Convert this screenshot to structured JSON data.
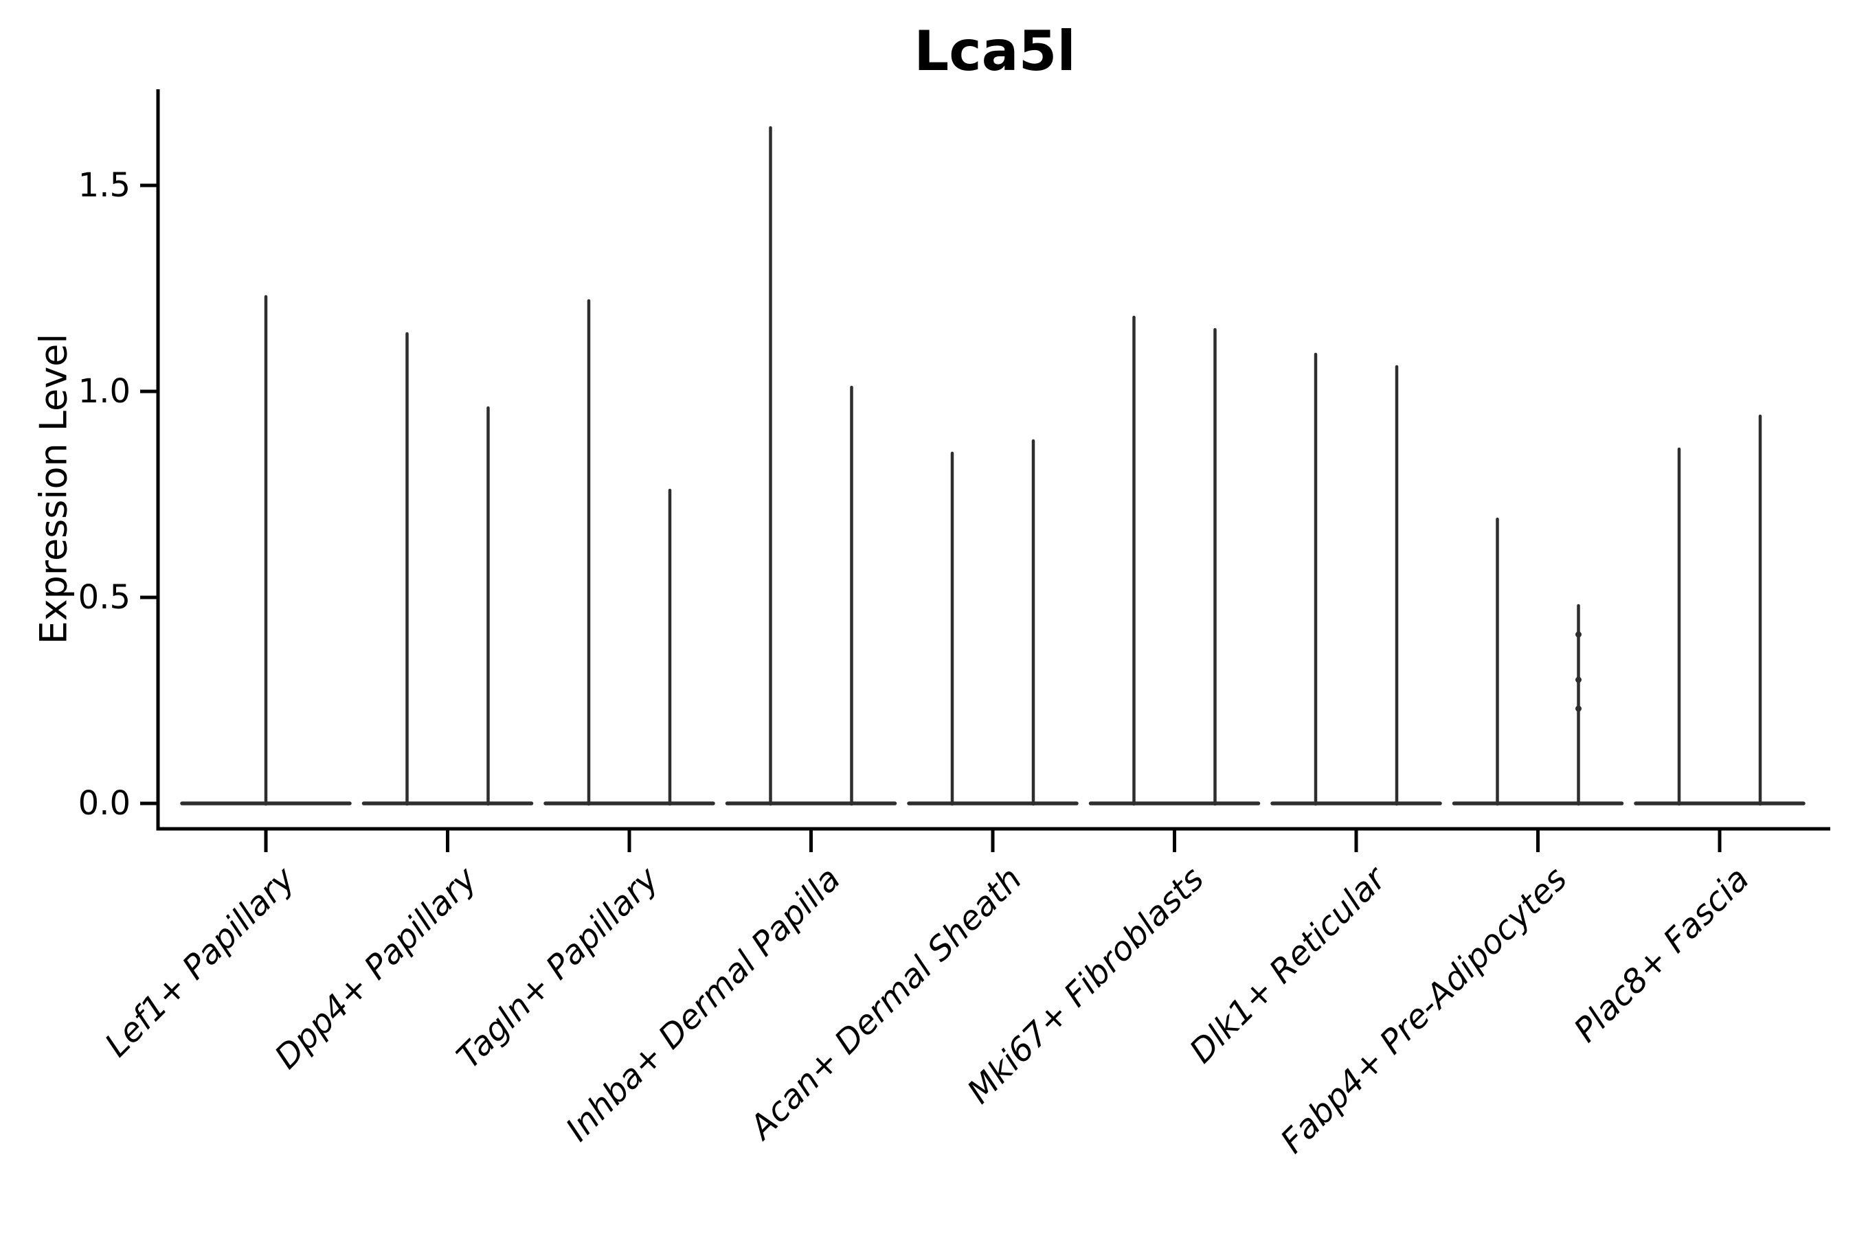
{
  "chart_data": {
    "type": "violin",
    "title": "Lca5l",
    "ylabel": "Expression Level",
    "xlabel": "",
    "ytick_labels": [
      "0.0",
      "0.5",
      "1.0",
      "1.5"
    ],
    "ytick_values": [
      0.0,
      0.5,
      1.0,
      1.5
    ],
    "ylim": [
      -0.06,
      1.74
    ],
    "grid": false,
    "legend": "none",
    "baseline_value": 0.0,
    "colors": {
      "violin_line": "#2e2e2e",
      "axis": "#000000",
      "background": "#ffffff"
    },
    "violins": [
      {
        "category": "Lef1+ Papillary",
        "groups": [
          {
            "position": "center",
            "max": 1.23
          }
        ]
      },
      {
        "category": "Dpp4+ Papillary",
        "groups": [
          {
            "position": "left",
            "max": 1.14
          },
          {
            "position": "right",
            "max": 0.96
          }
        ]
      },
      {
        "category": "Tagln+ Papillary",
        "groups": [
          {
            "position": "left",
            "max": 1.22
          },
          {
            "position": "right",
            "max": 0.76
          }
        ]
      },
      {
        "category": "Inhba+ Dermal Papilla",
        "groups": [
          {
            "position": "left",
            "max": 1.64
          },
          {
            "position": "right",
            "max": 1.01
          }
        ]
      },
      {
        "category": "Acan+ Dermal Sheath",
        "groups": [
          {
            "position": "left",
            "max": 0.85
          },
          {
            "position": "right",
            "max": 0.88
          }
        ]
      },
      {
        "category": "Mki67+ Fibroblasts",
        "groups": [
          {
            "position": "left",
            "max": 1.18
          },
          {
            "position": "right",
            "max": 1.15
          }
        ]
      },
      {
        "category": "Dlk1+ Reticular",
        "groups": [
          {
            "position": "left",
            "max": 1.09
          },
          {
            "position": "right",
            "max": 1.06
          }
        ]
      },
      {
        "category": "Fabp4+ Pre-Adipocytes",
        "groups": [
          {
            "position": "left",
            "max": 0.69
          },
          {
            "position": "right",
            "max": 0.48,
            "bumps": [
              0.41,
              0.3,
              0.23
            ]
          }
        ]
      },
      {
        "category": "Plac8+ Fascia",
        "groups": [
          {
            "position": "left",
            "max": 0.86
          },
          {
            "position": "right",
            "max": 0.94
          }
        ]
      }
    ]
  }
}
